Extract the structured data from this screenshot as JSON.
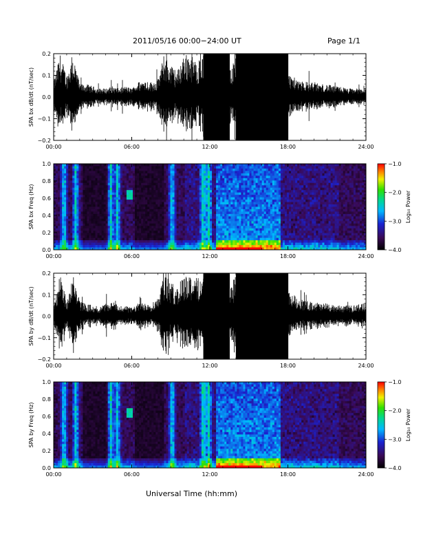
{
  "header": {
    "title": "2011/05/16  00:00−24:00 UT",
    "page": "Page 1/1"
  },
  "footer": {
    "xlabel": "Universal Time (hh:mm)"
  },
  "chart_data": [
    {
      "type": "line",
      "panel": "bx-waveform",
      "ylabel": "SPA bx dB/dt (nT/sec)",
      "xlim": [
        "00:00",
        "24:00"
      ],
      "ylim": [
        -0.2,
        0.2
      ],
      "x_ticks": [
        "00:00",
        "06:00",
        "12:00",
        "18:00",
        "24:00"
      ],
      "y_ticks": [
        "0.2",
        "0.1",
        "0.0",
        "−0.1",
        "−0.2"
      ],
      "color": "#000000",
      "series": [
        {
          "x": [
            0.0,
            0.5,
            1.0,
            1.5,
            2.0,
            2.5,
            3.0,
            3.5,
            4.0,
            4.5,
            5.0,
            5.5,
            6.0,
            6.5,
            7.0,
            7.5,
            8.0,
            8.5,
            9.0,
            9.5,
            10.0,
            10.5,
            11.0,
            11.5,
            12.0,
            12.5,
            13.0,
            13.5,
            14.0,
            14.5,
            15.0,
            15.5,
            16.0,
            16.5,
            17.0,
            17.5,
            18.0,
            18.5,
            19.0,
            19.5,
            20.0,
            20.5,
            21.0,
            21.5,
            22.0,
            22.5,
            23.0,
            23.5
          ],
          "amplitude": [
            0.07,
            0.2,
            0.1,
            0.2,
            0.06,
            0.06,
            0.05,
            0.04,
            0.04,
            0.05,
            0.04,
            0.05,
            0.04,
            0.07,
            0.08,
            0.07,
            0.08,
            0.2,
            0.15,
            0.12,
            0.2,
            0.2,
            0.16,
            0.2,
            0.2,
            0.2,
            0.2,
            0.12,
            0.2,
            0.2,
            0.2,
            0.2,
            0.2,
            0.2,
            0.2,
            0.2,
            0.11,
            0.09,
            0.08,
            0.07,
            0.07,
            0.06,
            0.06,
            0.05,
            0.05,
            0.04,
            0.04,
            0.04
          ]
        }
      ]
    },
    {
      "type": "heatmap",
      "panel": "bx-spectrogram",
      "ylabel": "SPA bx Freq (Hz)",
      "xlim": [
        "00:00",
        "24:00"
      ],
      "ylim": [
        0.0,
        1.0
      ],
      "x_ticks": [
        "00:00",
        "06:00",
        "12:00",
        "18:00",
        "24:00"
      ],
      "y_ticks": [
        "1.0",
        "0.8",
        "0.6",
        "0.4",
        "0.2",
        "0.0"
      ],
      "colorbar": {
        "label": "Log₁₀ Power",
        "ticks": [
          "−1.0",
          "−2.0",
          "−3.0",
          "−4.0"
        ],
        "range": [
          -4.0,
          -1.0
        ]
      },
      "bright_bands_hours": [
        0.8,
        1.7,
        4.4,
        4.9,
        9.1,
        11.5,
        11.9
      ],
      "active_interval_hours": [
        12.5,
        17.5
      ],
      "signal_blob": {
        "hour": 5.9,
        "freq_hz": 0.63
      }
    },
    {
      "type": "line",
      "panel": "by-waveform",
      "ylabel": "SPA by dB/dt (nT/sec)",
      "xlim": [
        "00:00",
        "24:00"
      ],
      "ylim": [
        -0.2,
        0.2
      ],
      "x_ticks": [
        "00:00",
        "06:00",
        "12:00",
        "18:00",
        "24:00"
      ],
      "y_ticks": [
        "0.2",
        "0.1",
        "0.0",
        "−0.1",
        "−0.2"
      ],
      "color": "#000000",
      "series": [
        {
          "x": [
            0.0,
            0.5,
            1.0,
            1.5,
            2.0,
            2.5,
            3.0,
            3.5,
            4.0,
            4.5,
            5.0,
            5.5,
            6.0,
            6.5,
            7.0,
            7.5,
            8.0,
            8.5,
            9.0,
            9.5,
            10.0,
            10.5,
            11.0,
            11.5,
            12.0,
            12.5,
            13.0,
            13.5,
            14.0,
            14.5,
            15.0,
            15.5,
            16.0,
            16.5,
            17.0,
            17.5,
            18.0,
            18.5,
            19.0,
            19.5,
            20.0,
            20.5,
            21.0,
            21.5,
            22.0,
            22.5,
            23.0,
            23.5
          ],
          "amplitude": [
            0.06,
            0.2,
            0.08,
            0.2,
            0.07,
            0.06,
            0.05,
            0.04,
            0.06,
            0.07,
            0.05,
            0.05,
            0.04,
            0.06,
            0.07,
            0.06,
            0.09,
            0.2,
            0.16,
            0.13,
            0.2,
            0.2,
            0.18,
            0.2,
            0.2,
            0.2,
            0.2,
            0.13,
            0.2,
            0.2,
            0.2,
            0.2,
            0.2,
            0.2,
            0.2,
            0.2,
            0.12,
            0.1,
            0.08,
            0.07,
            0.07,
            0.06,
            0.06,
            0.05,
            0.05,
            0.05,
            0.05,
            0.06
          ]
        }
      ]
    },
    {
      "type": "heatmap",
      "panel": "by-spectrogram",
      "ylabel": "SPA by Freq (Hz)",
      "xlim": [
        "00:00",
        "24:00"
      ],
      "ylim": [
        0.0,
        1.0
      ],
      "x_ticks": [
        "00:00",
        "06:00",
        "12:00",
        "18:00",
        "24:00"
      ],
      "y_ticks": [
        "1.0",
        "0.8",
        "0.6",
        "0.4",
        "0.2",
        "0.0"
      ],
      "colorbar": {
        "label": "Log₁₀ Power",
        "ticks": [
          "−1.0",
          "−2.0",
          "−3.0",
          "−4.0"
        ],
        "range": [
          -4.0,
          -1.0
        ]
      },
      "bright_bands_hours": [
        0.8,
        1.7,
        4.4,
        4.9,
        9.1,
        11.5,
        11.9
      ],
      "active_interval_hours": [
        12.5,
        17.5
      ],
      "signal_blob": {
        "hour": 5.9,
        "freq_hz": 0.63
      }
    }
  ]
}
